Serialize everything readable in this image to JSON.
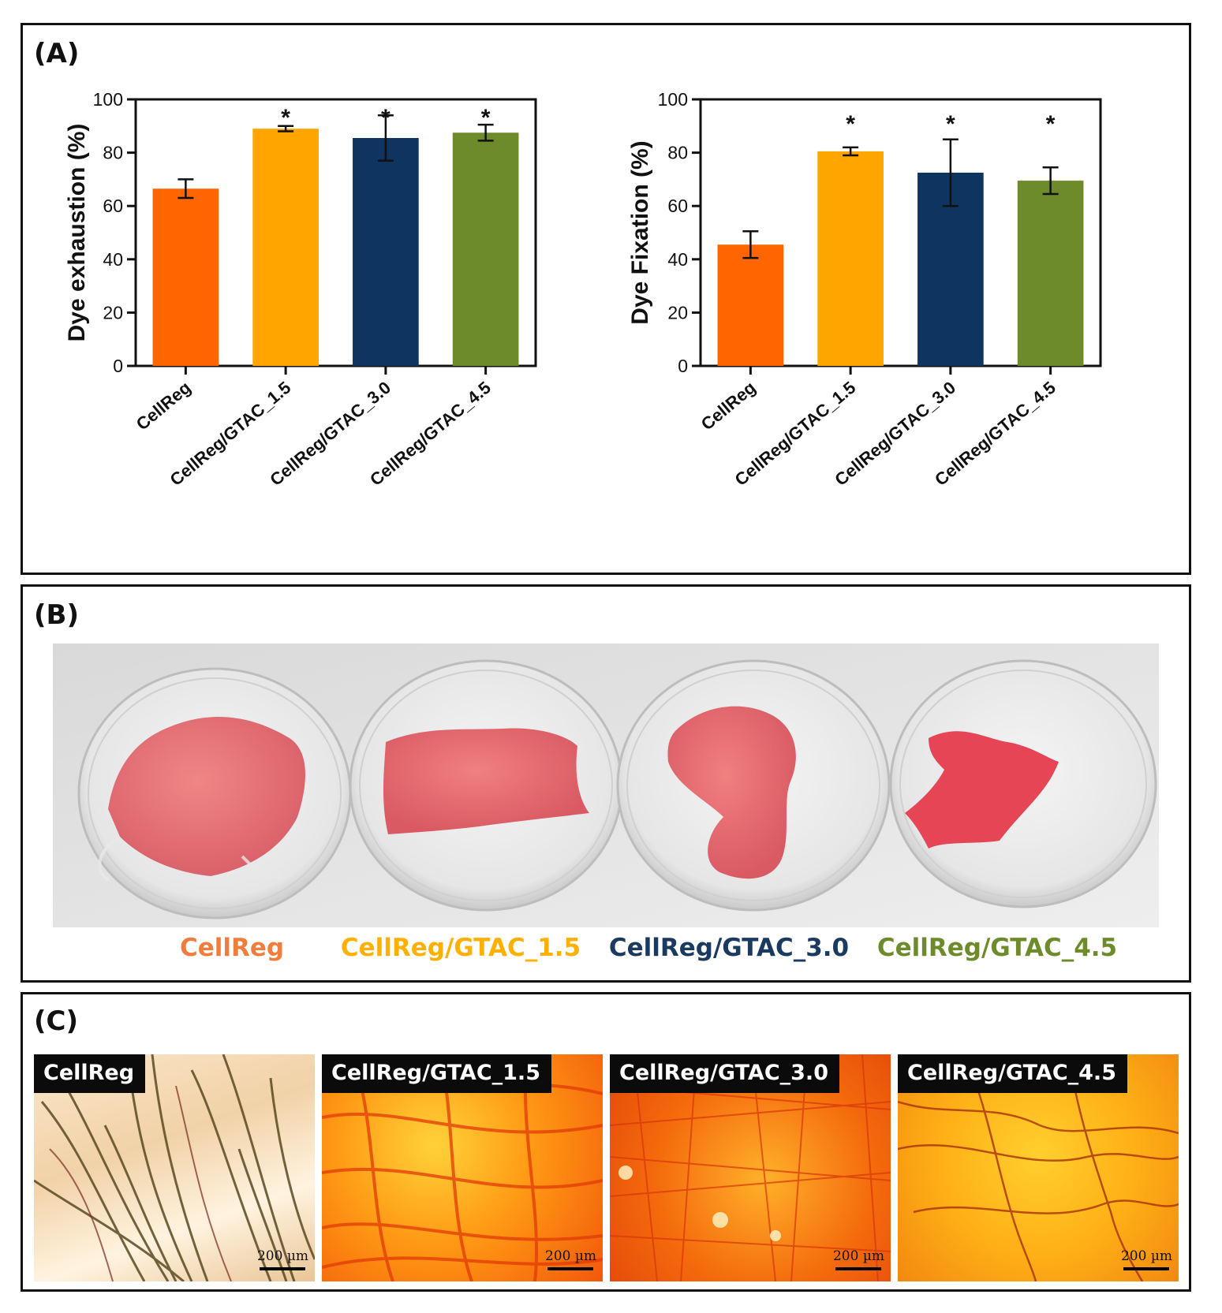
{
  "panels": {
    "a_label": "(A)",
    "b_label": "(B)",
    "c_label": "(C)"
  },
  "chart_data": [
    {
      "type": "bar",
      "categories": [
        "CellReg",
        "CellReg/GTAC_1.5",
        "CellReg/GTAC_3.0",
        "CellReg/GTAC_4.5"
      ],
      "values": [
        66.5,
        89,
        85.5,
        87.5
      ],
      "errors": [
        3.5,
        1,
        8.5,
        3
      ],
      "significance": [
        "",
        "*",
        "*",
        "*"
      ],
      "colors": [
        "#ff6600",
        "#ffa500",
        "#0d3560",
        "#6e8b2b"
      ],
      "title": "",
      "xlabel": "",
      "ylabel": "Dye exhaustion (%)",
      "ylim": [
        0,
        100
      ],
      "yticks": [
        0,
        20,
        40,
        60,
        80,
        100
      ]
    },
    {
      "type": "bar",
      "categories": [
        "CellReg",
        "CellReg/GTAC_1.5",
        "CellReg/GTAC_3.0",
        "CellReg/GTAC_4.5"
      ],
      "values": [
        45.5,
        80.5,
        72.5,
        69.5
      ],
      "errors": [
        5,
        1.5,
        12.5,
        5
      ],
      "significance": [
        "",
        "*",
        "*",
        "*"
      ],
      "colors": [
        "#ff6600",
        "#ffa500",
        "#0d3560",
        "#6e8b2b"
      ],
      "title": "",
      "xlabel": "",
      "ylabel": "Dye Fixation (%)",
      "ylim": [
        0,
        100
      ],
      "yticks": [
        0,
        20,
        40,
        60,
        80,
        100
      ]
    }
  ],
  "photo_captions": [
    {
      "text": "CellReg",
      "color": "#f07d3c"
    },
    {
      "text": "CellReg/GTAC_1.5",
      "color": "#ffb000"
    },
    {
      "text": "CellReg/GTAC_3.0",
      "color": "#1b3a60"
    },
    {
      "text": "CellReg/GTAC_4.5",
      "color": "#6e8b2b"
    }
  ],
  "micrographs": [
    {
      "label": "CellReg",
      "scale": "200 µm"
    },
    {
      "label": "CellReg/GTAC_1.5",
      "scale": "200 µm"
    },
    {
      "label": "CellReg/GTAC_3.0",
      "scale": "200 µm"
    },
    {
      "label": "CellReg/GTAC_4.5",
      "scale": "200 µm"
    }
  ]
}
